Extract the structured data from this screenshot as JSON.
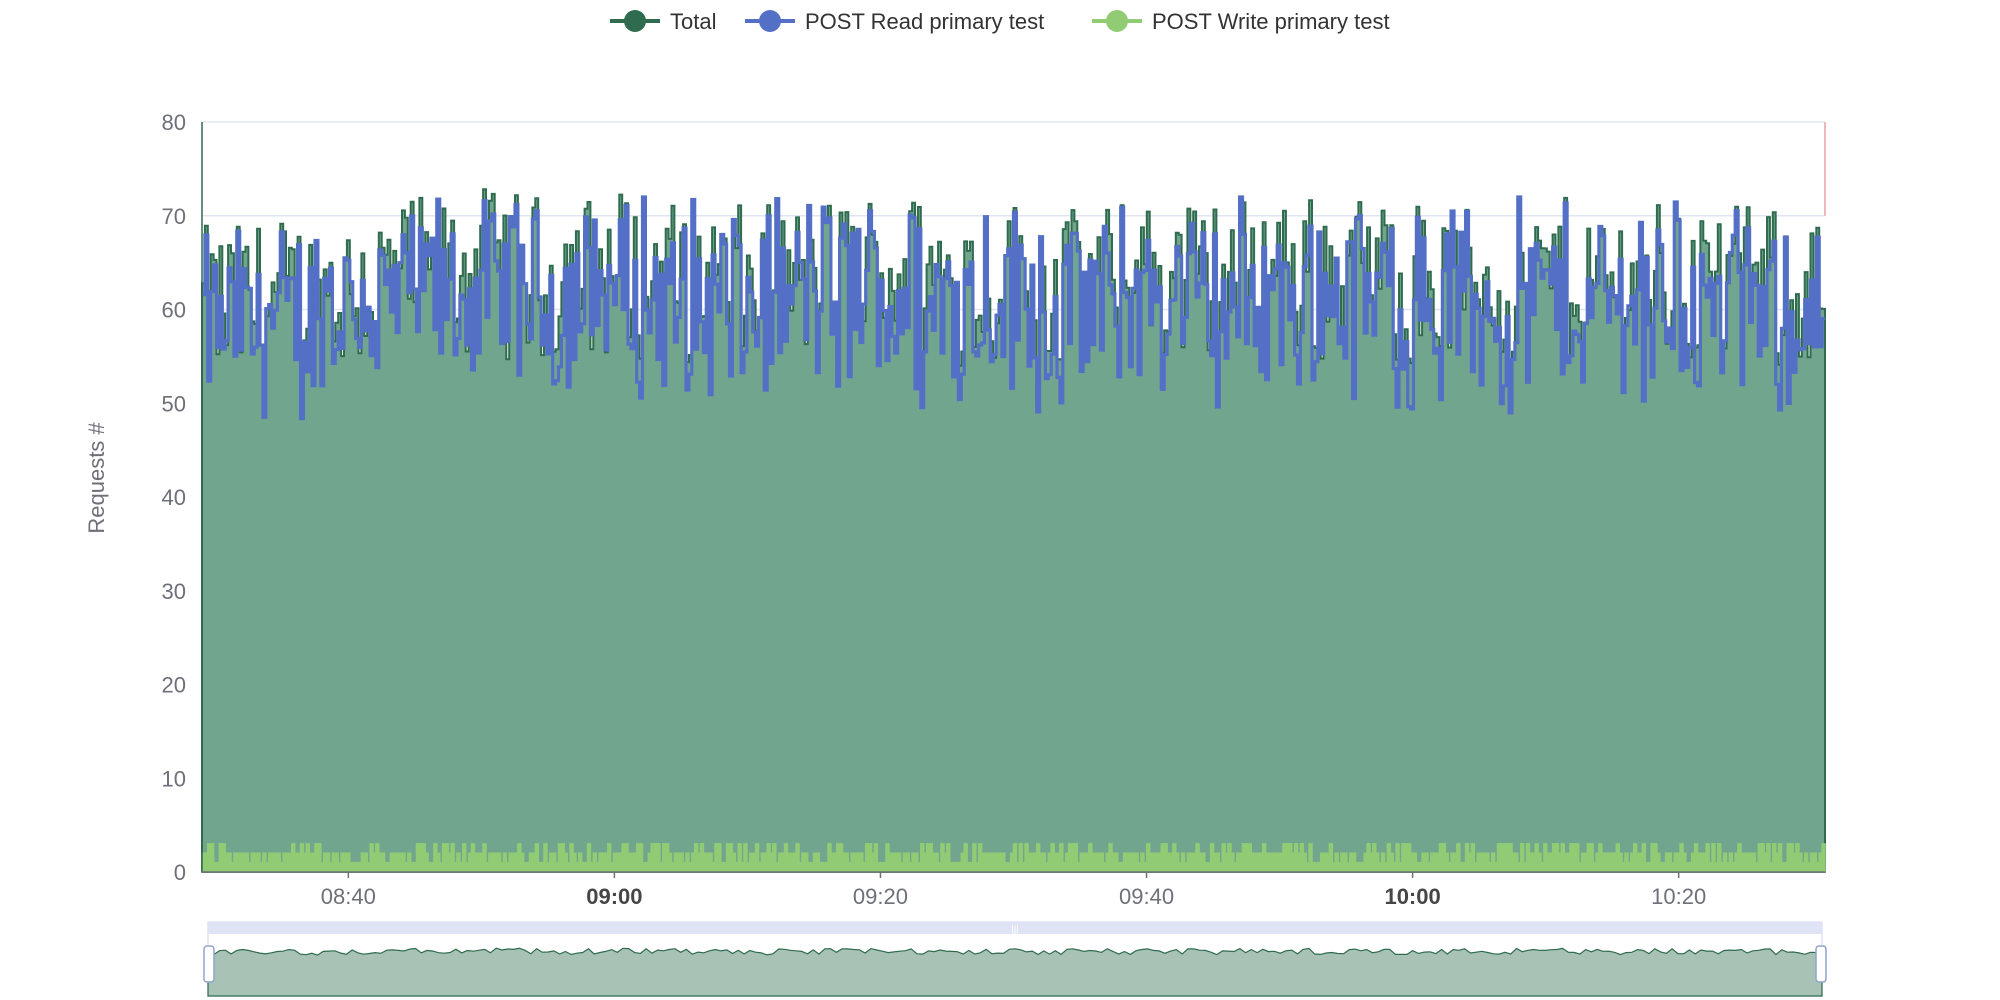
{
  "chart_data": {
    "type": "area",
    "title": "",
    "xlabel": "",
    "ylabel": "Requests #",
    "ylim": [
      0,
      80
    ],
    "y_ticks": [
      0,
      10,
      20,
      30,
      40,
      50,
      60,
      70,
      80
    ],
    "x_range": [
      "08:29",
      "10:31"
    ],
    "x_ticks": [
      {
        "label": "08:40",
        "major": false
      },
      {
        "label": "09:00",
        "major": true
      },
      {
        "label": "09:20",
        "major": false
      },
      {
        "label": "09:40",
        "major": false
      },
      {
        "label": "10:00",
        "major": true
      },
      {
        "label": "10:20",
        "major": false
      }
    ],
    "grid": true,
    "legend_position": "top-center",
    "interval": "per 10 seconds",
    "series": [
      {
        "name": "Total",
        "color": "#2f6b4e",
        "fill": "#72a58e",
        "type": "area",
        "x": [
          "08:30",
          "08:35",
          "08:40",
          "08:45",
          "08:50",
          "08:55",
          "09:00",
          "09:05",
          "09:10",
          "09:15",
          "09:20",
          "09:25",
          "09:30",
          "09:35",
          "09:40",
          "09:45",
          "09:50",
          "09:55",
          "10:00",
          "10:05",
          "10:10",
          "10:15",
          "10:20",
          "10:25",
          "10:30"
        ],
        "values": [
          60,
          61,
          62,
          63,
          64,
          63,
          64,
          63,
          62,
          63,
          64,
          63,
          63,
          62,
          63,
          63,
          64,
          63,
          63,
          62,
          63,
          63,
          63,
          62,
          62
        ]
      },
      {
        "name": "POST Read primary test",
        "color": "#5470c6",
        "type": "line",
        "x": [
          "08:30",
          "08:35",
          "08:40",
          "08:45",
          "08:50",
          "08:55",
          "09:00",
          "09:05",
          "09:10",
          "09:15",
          "09:20",
          "09:25",
          "09:30",
          "09:35",
          "09:40",
          "09:45",
          "09:50",
          "09:55",
          "10:00",
          "10:05",
          "10:10",
          "10:15",
          "10:20",
          "10:25",
          "10:30"
        ],
        "values": [
          58,
          59,
          60,
          61,
          62,
          61,
          62,
          61,
          60,
          61,
          62,
          61,
          61,
          60,
          61,
          61,
          62,
          61,
          61,
          60,
          61,
          61,
          61,
          60,
          60
        ]
      },
      {
        "name": "POST Write primary test",
        "color": "#91cc75",
        "type": "area",
        "x": [
          "08:30",
          "08:35",
          "08:40",
          "08:45",
          "08:50",
          "08:55",
          "09:00",
          "09:05",
          "09:10",
          "09:15",
          "09:20",
          "09:25",
          "09:30",
          "09:35",
          "09:40",
          "09:45",
          "09:50",
          "09:55",
          "10:00",
          "10:05",
          "10:10",
          "10:15",
          "10:20",
          "10:25",
          "10:30"
        ],
        "values": [
          2,
          2,
          2,
          2,
          2,
          2,
          2,
          2,
          2,
          2,
          2,
          2,
          2,
          2,
          2,
          2,
          2,
          2,
          2,
          2,
          2,
          2,
          2,
          2,
          2
        ]
      }
    ],
    "data_zoom": {
      "start_percent": 0,
      "end_percent": 100
    }
  },
  "colors": {
    "total_line": "#2f6b4e",
    "total_fill": "#72a58e",
    "read_line": "#5470c6",
    "write_fill": "#91cc75",
    "grid": "#dfe6f2",
    "axis": "#6e7079",
    "zoom_fill": "#a8c3b6",
    "zoom_border": "#dfe3f5"
  }
}
